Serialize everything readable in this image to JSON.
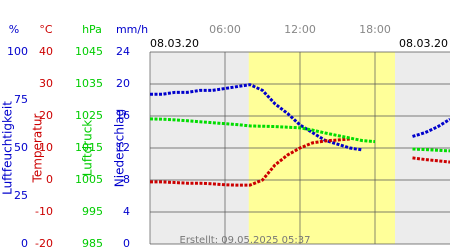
{
  "chart_data": {
    "type": "line",
    "date_left": "08.03.20",
    "date_right": "08.03.20",
    "footer": "Erstellt: 09.05.2025 05:37",
    "xlim": [
      0,
      24
    ],
    "xticks": [
      {
        "value": 6,
        "label": "06:00"
      },
      {
        "value": 12,
        "label": "12:00"
      },
      {
        "value": 18,
        "label": "18:00"
      }
    ],
    "daylight": [
      7.9,
      19.6
    ],
    "grid": true,
    "axes": [
      {
        "unit": "%",
        "label": "Luftfeuchtigkeit",
        "color": "#0000cc",
        "lim": [
          0,
          100
        ],
        "ticks": [
          0,
          25,
          50,
          75,
          100
        ]
      },
      {
        "unit": "°C",
        "label": "Temperatur",
        "color": "#cc0000",
        "lim": [
          -20,
          40
        ],
        "ticks": [
          -20,
          -10,
          0,
          10,
          20,
          30,
          40
        ]
      },
      {
        "unit": "hPa",
        "label": "Luftdruck",
        "color": "#00cc00",
        "lim": [
          985,
          1045
        ],
        "ticks": [
          985,
          995,
          1005,
          1015,
          1025,
          1035,
          1045
        ]
      },
      {
        "unit": "mm/h",
        "label": "Niederschlag",
        "color": "#0000cc",
        "lim": [
          0,
          24
        ],
        "ticks": [
          0,
          4,
          8,
          12,
          16,
          20,
          24
        ]
      }
    ],
    "x": [
      0,
      1,
      2,
      3,
      4,
      5,
      6,
      7,
      8,
      9,
      10,
      11,
      12,
      13,
      14,
      15,
      16,
      17,
      18,
      19,
      20,
      21,
      22,
      23,
      24
    ],
    "series": [
      {
        "name": "Luftfeuchtigkeit",
        "axis": 0,
        "color": "#0000cc",
        "values": [
          78,
          78,
          79,
          79,
          80,
          80,
          81,
          82,
          83,
          80,
          73,
          68,
          62,
          58,
          54,
          52,
          50,
          49,
          null,
          null,
          null,
          56,
          58,
          61,
          65
        ]
      },
      {
        "name": "Temperatur",
        "axis": 1,
        "color": "#cc0000",
        "values": [
          -0.6,
          -0.6,
          -0.8,
          -1,
          -1,
          -1.2,
          -1.5,
          -1.6,
          -1.6,
          0,
          4.7,
          7.8,
          10,
          11.6,
          12.2,
          12.5,
          12.8,
          null,
          null,
          null,
          null,
          6.9,
          6.4,
          6,
          5.6
        ]
      },
      {
        "name": "Luftdruck",
        "axis": 2,
        "color": "#00dd00",
        "values": [
          1024.1,
          1024,
          1023.8,
          1023.5,
          1023.2,
          1022.9,
          1022.6,
          1022.3,
          1021.9,
          1021.8,
          1021.7,
          1021.5,
          1021.3,
          1020.6,
          1019.7,
          1018.9,
          1018.1,
          1017.3,
          1017,
          null,
          null,
          1014.7,
          1014.5,
          1014.3,
          1014.1
        ]
      }
    ]
  }
}
